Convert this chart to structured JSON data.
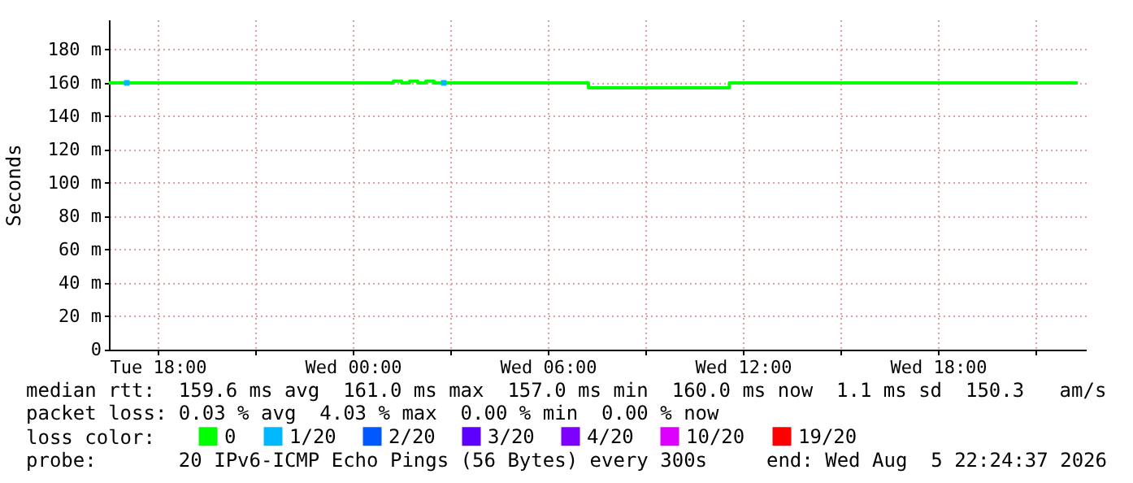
{
  "chart_data": {
    "type": "step",
    "ylabel": "Seconds",
    "legend_title": "loss color:",
    "legend": "bottom",
    "grid": true,
    "xlim": [
      "2026-08-04T16:30",
      "2026-08-05T22:33"
    ],
    "xticks": [
      {
        "value": "2026-08-04T18:00",
        "label": "Tue 18:00"
      },
      {
        "value": "2026-08-04T21:00",
        "label": null
      },
      {
        "value": "2026-08-05T00:00",
        "label": "Wed 00:00"
      },
      {
        "value": "2026-08-05T03:00",
        "label": null
      },
      {
        "value": "2026-08-05T06:00",
        "label": "Wed 06:00"
      },
      {
        "value": "2026-08-05T09:00",
        "label": null
      },
      {
        "value": "2026-08-05T12:00",
        "label": "Wed 12:00"
      },
      {
        "value": "2026-08-05T15:00",
        "label": null
      },
      {
        "value": "2026-08-05T18:00",
        "label": "Wed 18:00"
      },
      {
        "value": "2026-08-05T21:00",
        "label": null
      }
    ],
    "ylim": [
      0,
      198
    ],
    "yticks": [
      0,
      {
        "value": 20,
        "label": "20 m"
      },
      {
        "value": 40,
        "label": "40 m"
      },
      {
        "value": 60,
        "label": "60 m"
      },
      {
        "value": 80,
        "label": "80 m"
      },
      {
        "value": 100,
        "label": "100 m"
      },
      {
        "value": 120,
        "label": "120 m"
      },
      {
        "value": 140,
        "label": "140 m"
      },
      {
        "value": 160,
        "label": "160 m"
      },
      {
        "value": 180,
        "label": "180 m"
      }
    ],
    "series": [
      {
        "name": "0",
        "color": "#00ff00",
        "x": [
          "2026-08-04T16:30",
          "2026-08-05T01:15",
          "2026-08-05T01:30",
          "2026-08-05T01:45",
          "2026-08-05T02:00",
          "2026-08-05T02:15",
          "2026-08-05T02:30",
          "2026-08-05T07:15",
          "2026-08-05T11:35",
          "2026-08-05T22:18"
        ],
        "values": [
          160,
          161,
          160,
          161,
          160,
          161,
          160,
          157,
          160,
          160
        ]
      },
      {
        "name": "1/20",
        "color": "#00b8ff",
        "type": "scatter",
        "marker": "square",
        "x": [
          "2026-08-04T17:03",
          "2026-08-05T02:48"
        ],
        "values": [
          160,
          160
        ]
      },
      {
        "name": "2/20",
        "color": "#0059ff",
        "type": "scatter",
        "marker": "square"
      },
      {
        "name": "3/20",
        "color": "#5e00ff",
        "type": "scatter",
        "marker": "square"
      },
      {
        "name": "4/20",
        "color": "#7e00ff",
        "type": "scatter",
        "marker": "square"
      },
      {
        "name": "10/20",
        "color": "#dd00ff",
        "type": "scatter",
        "marker": "square"
      },
      {
        "name": "19/20",
        "color": "#ff0000",
        "type": "scatter",
        "marker": "square"
      }
    ],
    "annotations": [
      "median rtt:  159.6 ms avg  161.0 ms max  157.0 ms min  160.0 ms now  1.1 ms sd  150.3   am/s",
      "packet loss: 0.03 % avg  4.03 % max  0.00 % min  0.00 % now",
      "probe:       20 IPv6-ICMP Echo Pings (56 Bytes) every 300s",
      "end: Wed Aug  5 22:24:37 2026"
    ]
  }
}
